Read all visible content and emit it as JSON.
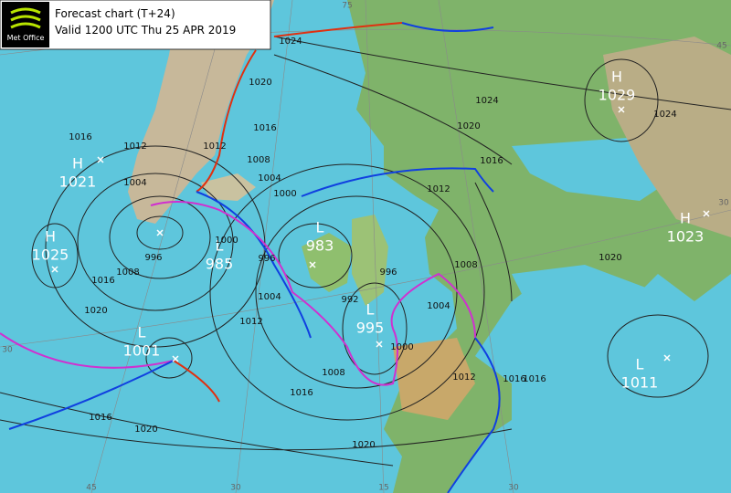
{
  "header": {
    "logo": "Met Office",
    "title": "Forecast chart (T+24)",
    "valid": "Valid 1200 UTC  Thu 25 APR 2019"
  },
  "pressure_centers": [
    {
      "type": "H",
      "value": 1021
    },
    {
      "type": "H",
      "value": 1025
    },
    {
      "type": "L",
      "value": 1001
    },
    {
      "type": "L",
      "value": 985
    },
    {
      "type": "L",
      "value": 983
    },
    {
      "type": "L",
      "value": 995
    },
    {
      "type": "H",
      "value": 1029
    },
    {
      "type": "H",
      "value": 1023
    },
    {
      "type": "L",
      "value": 1011
    }
  ],
  "isobar_labels": [
    1024,
    1020,
    1016,
    1012,
    1008,
    1004,
    1000,
    1016,
    1012,
    1004,
    996,
    1000,
    996,
    1004,
    1008,
    1016,
    1020,
    1012,
    1008,
    1016,
    1020,
    1016,
    1020,
    1024,
    1020,
    1016,
    1012,
    1008,
    1004,
    996,
    992,
    1000,
    1012,
    1016,
    1016,
    1020,
    1024
  ],
  "grid_labels": [
    75,
    45,
    30,
    15,
    30,
    30,
    30,
    45
  ]
}
